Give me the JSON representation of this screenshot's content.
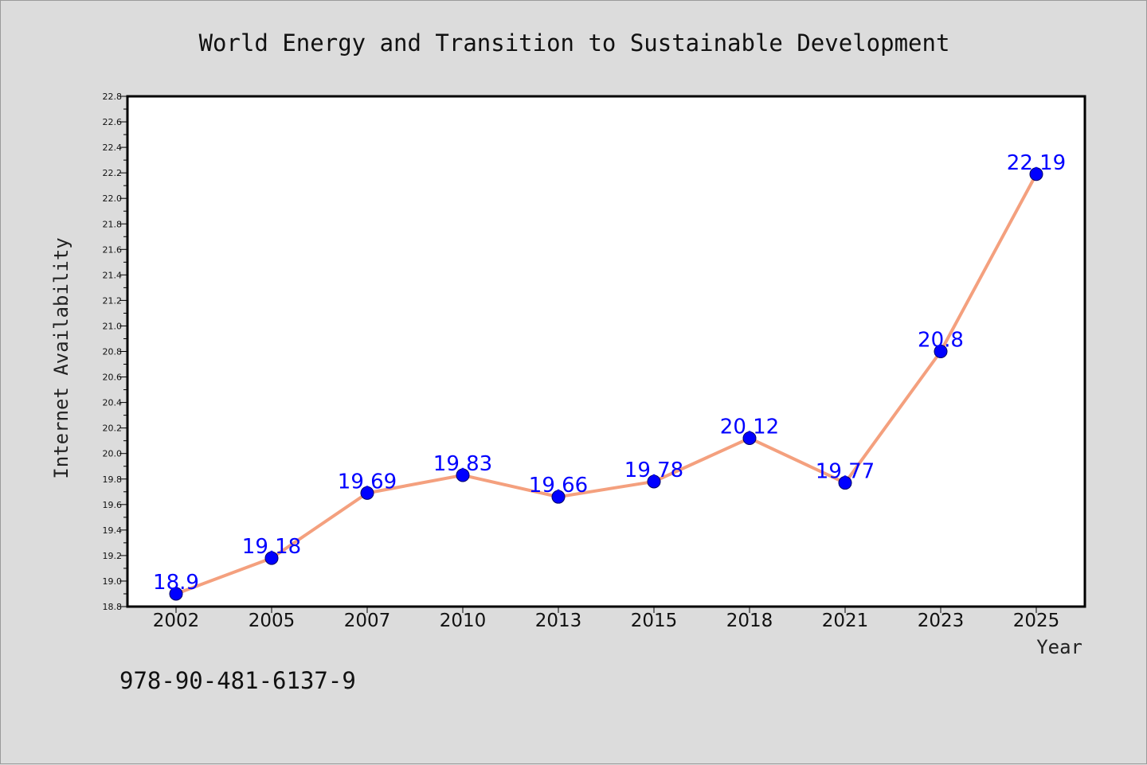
{
  "chart_data": {
    "type": "line",
    "title": "World Energy and Transition to Sustainable Development",
    "xlabel": "Year",
    "ylabel": "Internet Availability",
    "categories": [
      "2002",
      "2005",
      "2007",
      "2010",
      "2013",
      "2015",
      "2018",
      "2021",
      "2023",
      "2025"
    ],
    "series": [
      {
        "values": [
          18.9,
          19.18,
          19.69,
          19.83,
          19.66,
          19.78,
          20.12,
          19.77,
          20.8,
          22.19
        ],
        "value_labels": [
          "18.9",
          "19.18",
          "19.69",
          "19.83",
          "19.66",
          "19.78",
          "20.12",
          "19.77",
          "20.8",
          "22.19"
        ]
      }
    ],
    "ylim": [
      18.8,
      22.8
    ],
    "yticks": [
      "18.8",
      "19.0",
      "19.2",
      "19.4",
      "19.6",
      "19.8",
      "20.0",
      "20.2",
      "20.4",
      "20.6",
      "20.8",
      "21.0",
      "21.2",
      "21.4",
      "21.6",
      "21.8",
      "22.0",
      "22.2",
      "22.4",
      "22.6",
      "22.8"
    ],
    "grid": false,
    "legend": "none",
    "colors": {
      "line": "#f4a07e",
      "marker": "#0000ff",
      "data_label": "#0000ff",
      "plot_background": "#ffffff",
      "figure_background": "#dcdcdc"
    }
  },
  "footer": {
    "isbn": "978-90-481-6137-9"
  }
}
